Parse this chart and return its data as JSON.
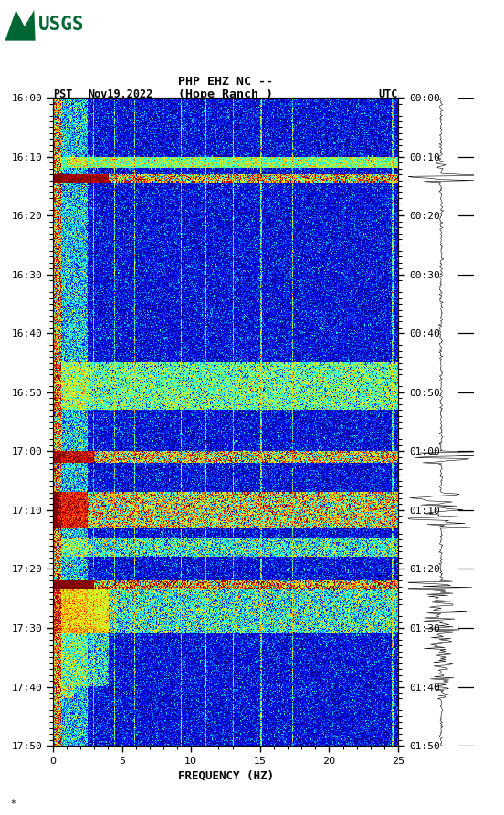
{
  "title_line1": "PHP EHZ NC --",
  "title_line2": "(Hope Ranch )",
  "label_left": "PST",
  "label_date": "Nov19,2022",
  "label_right": "UTC",
  "xlabel": "FREQUENCY (HZ)",
  "freq_min": 0,
  "freq_max": 25,
  "ytick_pst": [
    "16:00",
    "16:10",
    "16:20",
    "16:30",
    "16:40",
    "16:50",
    "17:00",
    "17:10",
    "17:20",
    "17:30",
    "17:40",
    "17:50"
  ],
  "ytick_utc": [
    "00:00",
    "00:10",
    "00:20",
    "00:30",
    "00:40",
    "00:50",
    "01:00",
    "01:10",
    "01:20",
    "01:30",
    "01:40",
    "01:50"
  ],
  "xticks": [
    0,
    5,
    10,
    15,
    20,
    25
  ],
  "background_color": "#ffffff",
  "usgs_green": "#006633",
  "spectrogram_colormap": "jet",
  "note": "*",
  "fig_width": 5.52,
  "fig_height": 8.93,
  "dpi": 100
}
